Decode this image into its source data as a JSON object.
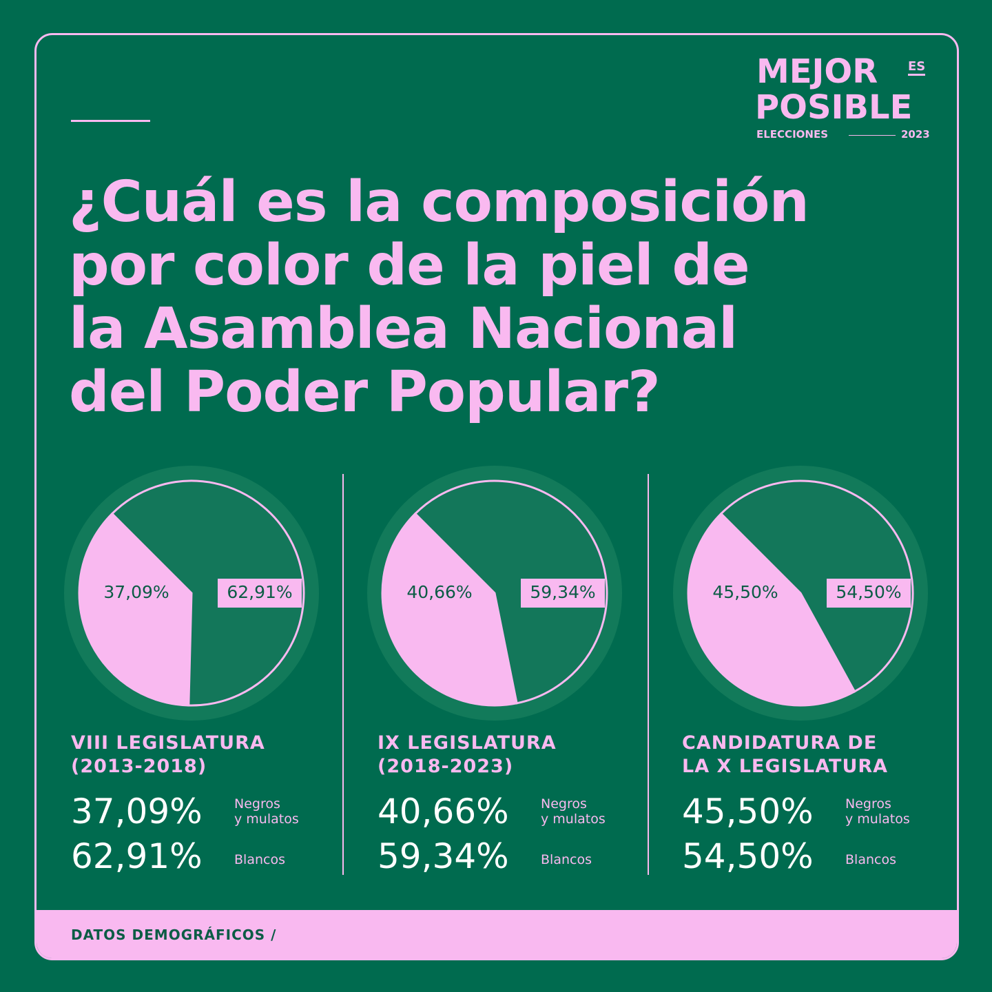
{
  "logo": {
    "line1": "MEJOR",
    "es": "ES",
    "line2": "POSIBLE",
    "left": "ELECCIONES",
    "right": "2023"
  },
  "title": "¿Cuál es la composición\npor color de la piel de\nla Asamblea Nacional\ndel Poder Popular?",
  "footer": "DATOS DEMOGRÁFICOS /",
  "chart_data": [
    {
      "type": "pie",
      "title": "VIII LEGISLATURA\n(2013-2018)",
      "categories": [
        "Negros\ny mulatos",
        "Blancos"
      ],
      "values": [
        37.09,
        62.91
      ],
      "value_labels": [
        "37,09%",
        "62,91%"
      ],
      "colors": [
        "#f9b9f0",
        "#13775a"
      ]
    },
    {
      "type": "pie",
      "title": "IX LEGISLATURA\n(2018-2023)",
      "categories": [
        "Negros\ny mulatos",
        "Blancos"
      ],
      "values": [
        40.66,
        59.34
      ],
      "value_labels": [
        "40,66%",
        "59,34%"
      ],
      "colors": [
        "#f9b9f0",
        "#13775a"
      ]
    },
    {
      "type": "pie",
      "title": "CANDIDATURA DE\nLA X LEGISLATURA",
      "categories": [
        "Negros\ny mulatos",
        "Blancos"
      ],
      "values": [
        45.5,
        54.5
      ],
      "value_labels": [
        "45,50%",
        "54,50%"
      ],
      "colors": [
        "#f9b9f0",
        "#13775a"
      ]
    }
  ]
}
